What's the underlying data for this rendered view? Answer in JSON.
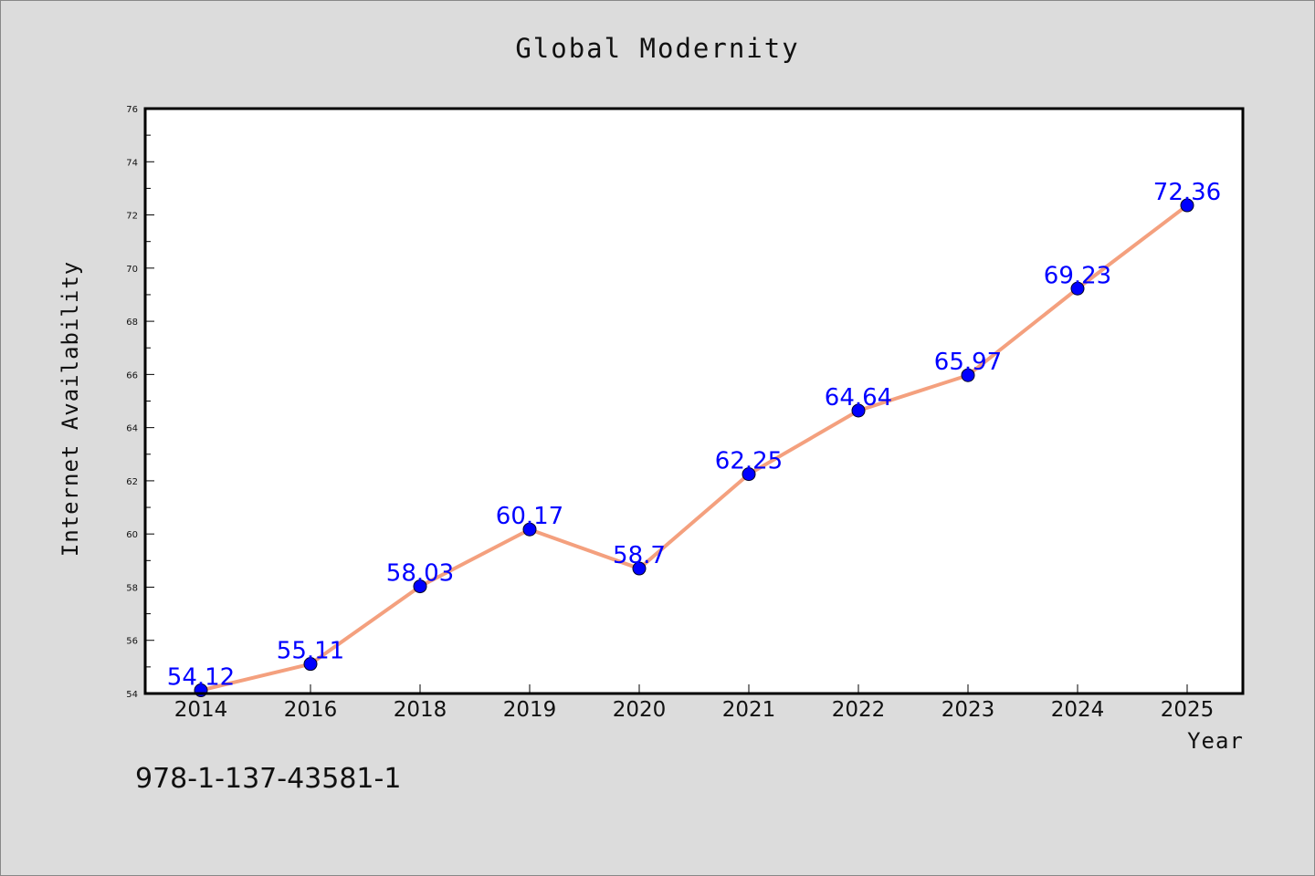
{
  "chart_data": {
    "type": "line",
    "title": "Global Modernity",
    "xlabel": "Year",
    "ylabel": "Internet Availability",
    "categories": [
      "2014",
      "2016",
      "2018",
      "2019",
      "2020",
      "2021",
      "2022",
      "2023",
      "2024",
      "2025"
    ],
    "series": [
      {
        "values": [
          54.12,
          55.11,
          58.03,
          60.17,
          58.7,
          62.25,
          64.64,
          65.97,
          69.23,
          72.36
        ],
        "labels": [
          "54.12",
          "55.11",
          "58.03",
          "60.17",
          "58.7",
          "62.25",
          "64.64",
          "65.97",
          "69.23",
          "72.36"
        ]
      }
    ],
    "ylim": [
      54,
      76
    ],
    "yticks": [
      "54",
      "56",
      "58",
      "60",
      "62",
      "64",
      "66",
      "68",
      "70",
      "72",
      "74",
      "76"
    ],
    "grid": false,
    "colors": {
      "line": "#f4a07e",
      "marker": "#0000ff",
      "label": "#0000ff"
    }
  },
  "annotation": {
    "isbn": "978-1-137-43581-1"
  }
}
